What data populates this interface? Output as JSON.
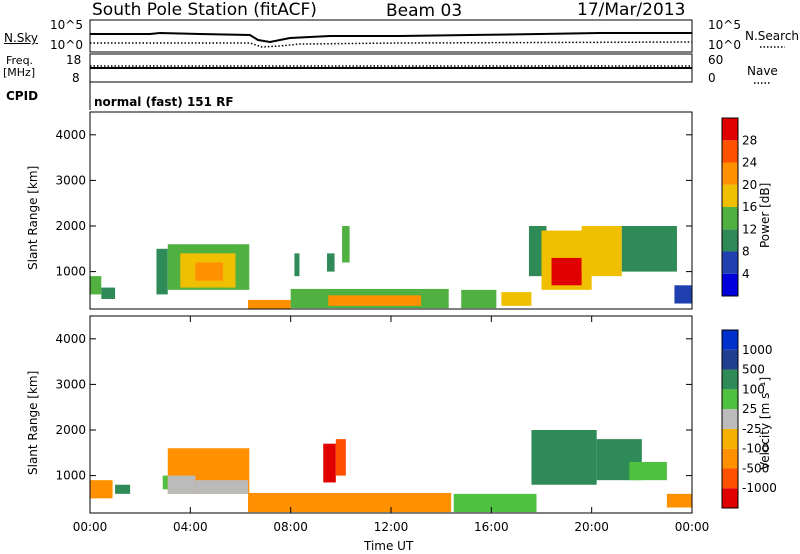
{
  "header": {
    "station": "South Pole Station (fitACF)",
    "beam": "Beam 03",
    "date": "17/Mar/2013"
  },
  "nsky_panel": {
    "left_label": "N.Sky",
    "right_label": "N.Search",
    "ticks_left": [
      "10^5",
      "10^0"
    ],
    "ticks_right": [
      "10^5",
      "10^0"
    ]
  },
  "freq_panel": {
    "left_label_1": "Freq.",
    "left_label_2": "[MHz]",
    "right_label": "Nave",
    "ticks_left": [
      "18",
      "8"
    ],
    "ticks_right": [
      "60",
      "0"
    ]
  },
  "cpid": {
    "label": "CPID",
    "value": "normal (fast) 151 RF"
  },
  "colors": {
    "power": [
      "#0000dd",
      "#2040b0",
      "#2e8b57",
      "#50b040",
      "#f0c000",
      "#ff9000",
      "#ff5000",
      "#e00000"
    ],
    "velocity": [
      "#e00000",
      "#ff5000",
      "#ff9000",
      "#f5b000",
      "#bbbbbb",
      "#50c040",
      "#2e8b57",
      "#204090",
      "#0030cc"
    ]
  },
  "chart_data": [
    {
      "type": "heatmap",
      "name": "power",
      "ylabel": "Slant Range [km]",
      "yticks": [
        1000,
        2000,
        3000,
        4000
      ],
      "ylim": [
        180,
        4500
      ],
      "xlim": [
        0,
        24
      ],
      "colorbar": {
        "label": "Power [dB]",
        "ticks": [
          "4",
          "8",
          "12",
          "16",
          "20",
          "24",
          "28"
        ],
        "range": [
          0,
          32
        ]
      },
      "regions": [
        {
          "t0": 0.0,
          "t1": 0.45,
          "r0": 500,
          "r1": 900,
          "value": 13
        },
        {
          "t0": 0.45,
          "t1": 1.0,
          "r0": 400,
          "r1": 650,
          "value": 8
        },
        {
          "t0": 2.65,
          "t1": 3.1,
          "r0": 500,
          "r1": 1500,
          "value": 8
        },
        {
          "t0": 3.1,
          "t1": 6.35,
          "r0": 600,
          "r1": 1600,
          "value": 13
        },
        {
          "t0": 3.6,
          "t1": 5.8,
          "r0": 650,
          "r1": 1400,
          "value": 17
        },
        {
          "t0": 4.2,
          "t1": 5.3,
          "r0": 800,
          "r1": 1200,
          "value": 22
        },
        {
          "t0": 6.3,
          "t1": 8.0,
          "r0": 180,
          "r1": 380,
          "value": 20
        },
        {
          "t0": 8.0,
          "t1": 14.3,
          "r0": 200,
          "r1": 620,
          "value": 14
        },
        {
          "t0": 9.5,
          "t1": 13.2,
          "r0": 250,
          "r1": 480,
          "value": 20
        },
        {
          "t0": 14.8,
          "t1": 16.2,
          "r0": 200,
          "r1": 600,
          "value": 12
        },
        {
          "t0": 16.4,
          "t1": 17.6,
          "r0": 250,
          "r1": 550,
          "value": 16
        },
        {
          "t0": 8.15,
          "t1": 8.35,
          "r0": 900,
          "r1": 1400,
          "value": 8
        },
        {
          "t0": 9.45,
          "t1": 9.75,
          "r0": 1000,
          "r1": 1400,
          "value": 10
        },
        {
          "t0": 10.05,
          "t1": 10.35,
          "r0": 1200,
          "r1": 2000,
          "value": 12
        },
        {
          "t0": 17.5,
          "t1": 18.2,
          "r0": 900,
          "r1": 2000,
          "value": 10
        },
        {
          "t0": 18.0,
          "t1": 20.0,
          "r0": 600,
          "r1": 1900,
          "value": 16
        },
        {
          "t0": 18.4,
          "t1": 19.6,
          "r0": 700,
          "r1": 1300,
          "value": 28
        },
        {
          "t0": 19.6,
          "t1": 21.2,
          "r0": 900,
          "r1": 2000,
          "value": 18
        },
        {
          "t0": 21.2,
          "t1": 23.4,
          "r0": 1000,
          "r1": 2000,
          "value": 8
        },
        {
          "t0": 23.3,
          "t1": 24.0,
          "r0": 300,
          "r1": 700,
          "value": 6
        }
      ]
    },
    {
      "type": "heatmap",
      "name": "velocity",
      "ylabel": "Slant Range [km]",
      "yticks": [
        1000,
        2000,
        3000,
        4000
      ],
      "ylim": [
        180,
        4500
      ],
      "xlim": [
        0,
        24
      ],
      "xticks": [
        "00:00",
        "04:00",
        "08:00",
        "12:00",
        "16:00",
        "20:00",
        "00:00"
      ],
      "xlabel": "Time UT",
      "colorbar": {
        "label": "Velocity [m s⁻¹]",
        "ticks": [
          "-1000",
          "-500",
          "-100",
          "-25",
          "25",
          "100",
          "500",
          "1000"
        ],
        "range": [
          -1500,
          1500
        ]
      },
      "regions": [
        {
          "t0": 0.0,
          "t1": 0.9,
          "r0": 500,
          "r1": 900,
          "value": -120
        },
        {
          "t0": 1.0,
          "t1": 1.6,
          "r0": 600,
          "r1": 800,
          "value": 250
        },
        {
          "t0": 2.9,
          "t1": 3.3,
          "r0": 700,
          "r1": 1000,
          "value": 50
        },
        {
          "t0": 3.1,
          "t1": 6.35,
          "r0": 600,
          "r1": 1600,
          "value": -120
        },
        {
          "t0": 3.1,
          "t1": 4.2,
          "r0": 600,
          "r1": 1000,
          "value": 0
        },
        {
          "t0": 4.2,
          "t1": 6.3,
          "r0": 600,
          "r1": 900,
          "value": 10
        },
        {
          "t0": 6.3,
          "t1": 14.4,
          "r0": 200,
          "r1": 620,
          "value": -200
        },
        {
          "t0": 14.5,
          "t1": 17.8,
          "r0": 200,
          "r1": 600,
          "value": 50
        },
        {
          "t0": 9.3,
          "t1": 9.8,
          "r0": 850,
          "r1": 1700,
          "value": -1100
        },
        {
          "t0": 9.8,
          "t1": 10.2,
          "r0": 1000,
          "r1": 1800,
          "value": -600
        },
        {
          "t0": 17.6,
          "t1": 20.2,
          "r0": 800,
          "r1": 2000,
          "value": 250
        },
        {
          "t0": 20.2,
          "t1": 22.0,
          "r0": 900,
          "r1": 1800,
          "value": 250
        },
        {
          "t0": 21.5,
          "t1": 23.0,
          "r0": 900,
          "r1": 1300,
          "value": 50
        },
        {
          "t0": 23.0,
          "t1": 24.0,
          "r0": 300,
          "r1": 600,
          "value": -150
        }
      ]
    }
  ]
}
